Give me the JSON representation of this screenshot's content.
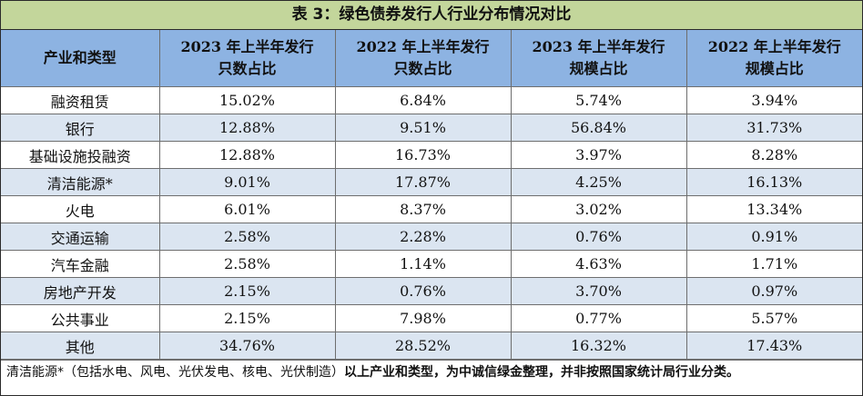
{
  "title": "表 3：绿色债券发行人行业分布情况对比",
  "headers": {
    "category": "产业和类型",
    "col1_line1": "2023 年上半年发行",
    "col1_line2": "只数占比",
    "col2_line1": "2022 年上半年发行",
    "col2_line2": "只数占比",
    "col3_line1": "2023 年上半年发行",
    "col3_line2": "规模占比",
    "col4_line1": "2022 年上半年发行",
    "col4_line2": "规模占比"
  },
  "rows": [
    {
      "category": "融资租赁",
      "c1": "15.02%",
      "c2": "6.84%",
      "c3": "5.74%",
      "c4": "3.94%"
    },
    {
      "category": "银行",
      "c1": "12.88%",
      "c2": "9.51%",
      "c3": "56.84%",
      "c4": "31.73%"
    },
    {
      "category": "基础设施投融资",
      "c1": "12.88%",
      "c2": "16.73%",
      "c3": "3.97%",
      "c4": "8.28%"
    },
    {
      "category": "清洁能源*",
      "c1": "9.01%",
      "c2": "17.87%",
      "c3": "4.25%",
      "c4": "16.13%"
    },
    {
      "category": "火电",
      "c1": "6.01%",
      "c2": "8.37%",
      "c3": "3.02%",
      "c4": "13.34%"
    },
    {
      "category": "交通运输",
      "c1": "2.58%",
      "c2": "2.28%",
      "c3": "0.76%",
      "c4": "0.91%"
    },
    {
      "category": "汽车金融",
      "c1": "2.58%",
      "c2": "1.14%",
      "c3": "4.63%",
      "c4": "1.71%"
    },
    {
      "category": "房地产开发",
      "c1": "2.15%",
      "c2": "0.76%",
      "c3": "3.70%",
      "c4": "0.97%"
    },
    {
      "category": "公共事业",
      "c1": "2.15%",
      "c2": "7.98%",
      "c3": "0.77%",
      "c4": "5.57%"
    },
    {
      "category": "其他",
      "c1": "34.76%",
      "c2": "28.52%",
      "c3": "16.32%",
      "c4": "17.43%"
    }
  ],
  "footnote": {
    "normal": "清洁能源*（包括水电、风电、光伏发电、核电、光伏制造）",
    "bold": "以上产业和类型，为中诚信绿金整理，并非按照国家统计局行业分类。"
  },
  "colors": {
    "title_bg": "#c3d69b",
    "header_bg": "#8db3e2",
    "alt_row_bg": "#dbe5f1"
  }
}
